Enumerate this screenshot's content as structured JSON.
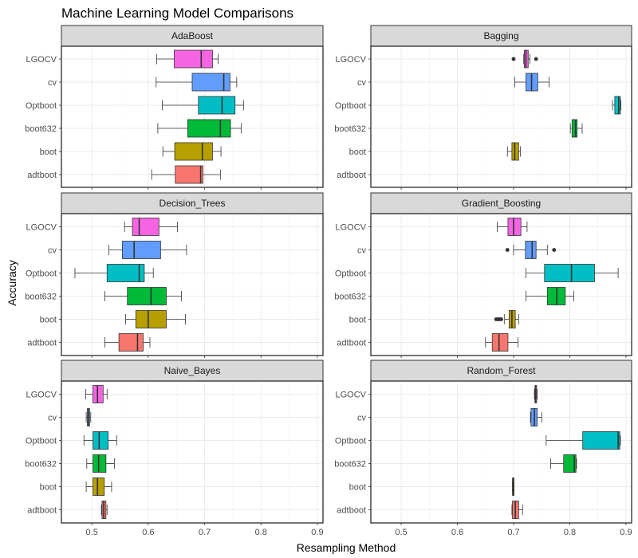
{
  "chart_data": {
    "type": "boxplot",
    "title": "Machine Learning Model Comparisons",
    "xlabel": "Resampling Method",
    "ylabel": "Accuracy",
    "categories": [
      "LGOCV",
      "cv",
      "Optboot",
      "boot632",
      "boot",
      "adtboot"
    ],
    "colors": {
      "LGOCV": "#f564e3",
      "cv": "#619cff",
      "Optboot": "#00bfc4",
      "boot632": "#00ba38",
      "boot": "#b79f00",
      "adtboot": "#f8766d"
    },
    "x_ticks": [
      0.5,
      0.6,
      0.7,
      0.8,
      0.9
    ],
    "x_tick_labels": [
      "0.5",
      "0.6",
      "0.7",
      "0.8",
      "0.9"
    ],
    "xlim": [
      0.446,
      0.91
    ],
    "grid": true,
    "legend": "none",
    "panels": [
      {
        "name": "AdaBoost",
        "boxes": {
          "LGOCV": {
            "min": 0.615,
            "q1": 0.646,
            "median": 0.694,
            "q3": 0.714,
            "max": 0.724,
            "outliers": []
          },
          "cv": {
            "min": 0.614,
            "q1": 0.678,
            "median": 0.734,
            "q3": 0.745,
            "max": 0.757,
            "outliers": []
          },
          "Optboot": {
            "min": 0.625,
            "q1": 0.689,
            "median": 0.731,
            "q3": 0.754,
            "max": 0.769,
            "outliers": []
          },
          "boot632": {
            "min": 0.617,
            "q1": 0.67,
            "median": 0.728,
            "q3": 0.746,
            "max": 0.765,
            "outliers": []
          },
          "boot": {
            "min": 0.626,
            "q1": 0.647,
            "median": 0.696,
            "q3": 0.714,
            "max": 0.729,
            "outliers": []
          },
          "adtboot": {
            "min": 0.606,
            "q1": 0.648,
            "median": 0.693,
            "q3": 0.697,
            "max": 0.728,
            "outliers": []
          }
        }
      },
      {
        "name": "Bagging",
        "boxes": {
          "LGOCV": {
            "min": 0.718,
            "q1": 0.719,
            "median": 0.722,
            "q3": 0.726,
            "max": 0.729,
            "outliers": [
              0.7,
              0.74
            ]
          },
          "cv": {
            "min": 0.702,
            "q1": 0.722,
            "median": 0.732,
            "q3": 0.743,
            "max": 0.763,
            "outliers": []
          },
          "Optboot": {
            "min": 0.876,
            "q1": 0.88,
            "median": 0.887,
            "q3": 0.89,
            "max": 0.891,
            "outliers": []
          },
          "boot632": {
            "min": 0.801,
            "q1": 0.804,
            "median": 0.81,
            "q3": 0.813,
            "max": 0.822,
            "outliers": []
          },
          "boot": {
            "min": 0.689,
            "q1": 0.697,
            "median": 0.702,
            "q3": 0.709,
            "max": 0.712,
            "outliers": []
          },
          "adtboot": null
        }
      },
      {
        "name": "Decision_Trees",
        "boxes": {
          "LGOCV": {
            "min": 0.558,
            "q1": 0.572,
            "median": 0.584,
            "q3": 0.619,
            "max": 0.652,
            "outliers": []
          },
          "cv": {
            "min": 0.53,
            "q1": 0.554,
            "median": 0.575,
            "q3": 0.622,
            "max": 0.668,
            "outliers": []
          },
          "Optboot": {
            "min": 0.47,
            "q1": 0.527,
            "median": 0.584,
            "q3": 0.593,
            "max": 0.609,
            "outliers": []
          },
          "boot632": {
            "min": 0.523,
            "q1": 0.563,
            "median": 0.605,
            "q3": 0.632,
            "max": 0.659,
            "outliers": []
          },
          "boot": {
            "min": 0.56,
            "q1": 0.578,
            "median": 0.6,
            "q3": 0.632,
            "max": 0.666,
            "outliers": []
          },
          "adtboot": {
            "min": 0.523,
            "q1": 0.548,
            "median": 0.581,
            "q3": 0.591,
            "max": 0.603,
            "outliers": []
          }
        }
      },
      {
        "name": "Gradient_Boosting",
        "boxes": {
          "LGOCV": {
            "min": 0.671,
            "q1": 0.69,
            "median": 0.7,
            "q3": 0.713,
            "max": 0.724,
            "outliers": []
          },
          "cv": {
            "min": 0.7,
            "q1": 0.721,
            "median": 0.733,
            "q3": 0.74,
            "max": 0.76,
            "outliers": [
              0.689,
              0.772
            ]
          },
          "Optboot": {
            "min": 0.722,
            "q1": 0.755,
            "median": 0.803,
            "q3": 0.844,
            "max": 0.886,
            "outliers": []
          },
          "boot632": {
            "min": 0.722,
            "q1": 0.76,
            "median": 0.777,
            "q3": 0.792,
            "max": 0.807,
            "outliers": []
          },
          "boot": {
            "min": 0.684,
            "q1": 0.692,
            "median": 0.697,
            "q3": 0.703,
            "max": 0.709,
            "outliers": [
              0.669,
              0.672,
              0.675,
              0.678
            ]
          },
          "adtboot": {
            "min": 0.65,
            "q1": 0.662,
            "median": 0.674,
            "q3": 0.69,
            "max": 0.708,
            "outliers": []
          }
        }
      },
      {
        "name": "Naive_Bayes",
        "boxes": {
          "LGOCV": {
            "min": 0.489,
            "q1": 0.502,
            "median": 0.51,
            "q3": 0.52,
            "max": 0.527,
            "outliers": []
          },
          "cv": {
            "min": 0.49,
            "q1": 0.492,
            "median": 0.494,
            "q3": 0.496,
            "max": 0.498,
            "outliers": []
          },
          "Optboot": {
            "min": 0.486,
            "q1": 0.502,
            "median": 0.513,
            "q3": 0.529,
            "max": 0.544,
            "outliers": []
          },
          "boot632": {
            "min": 0.491,
            "q1": 0.502,
            "median": 0.512,
            "q3": 0.525,
            "max": 0.54,
            "outliers": []
          },
          "boot": {
            "min": 0.49,
            "q1": 0.502,
            "median": 0.51,
            "q3": 0.522,
            "max": 0.535,
            "outliers": []
          },
          "adtboot": {
            "min": 0.517,
            "q1": 0.518,
            "median": 0.521,
            "q3": 0.525,
            "max": 0.527,
            "outliers": []
          }
        }
      },
      {
        "name": "Random_Forest",
        "boxes": {
          "LGOCV": {
            "min": 0.737,
            "q1": 0.738,
            "median": 0.739,
            "q3": 0.741,
            "max": 0.742,
            "outliers": []
          },
          "cv": {
            "min": 0.73,
            "q1": 0.731,
            "median": 0.737,
            "q3": 0.742,
            "max": 0.75,
            "outliers": []
          },
          "Optboot": {
            "min": 0.758,
            "q1": 0.823,
            "median": 0.886,
            "q3": 0.889,
            "max": 0.89,
            "outliers": []
          },
          "boot632": {
            "min": 0.766,
            "q1": 0.789,
            "median": 0.808,
            "q3": 0.811,
            "max": 0.812,
            "outliers": []
          },
          "boot": {
            "min": 0.698,
            "q1": 0.698,
            "median": 0.699,
            "q3": 0.7,
            "max": 0.7,
            "outliers": []
          },
          "adtboot": {
            "min": 0.697,
            "q1": 0.698,
            "median": 0.703,
            "q3": 0.709,
            "max": 0.716,
            "outliers": []
          }
        }
      }
    ]
  }
}
